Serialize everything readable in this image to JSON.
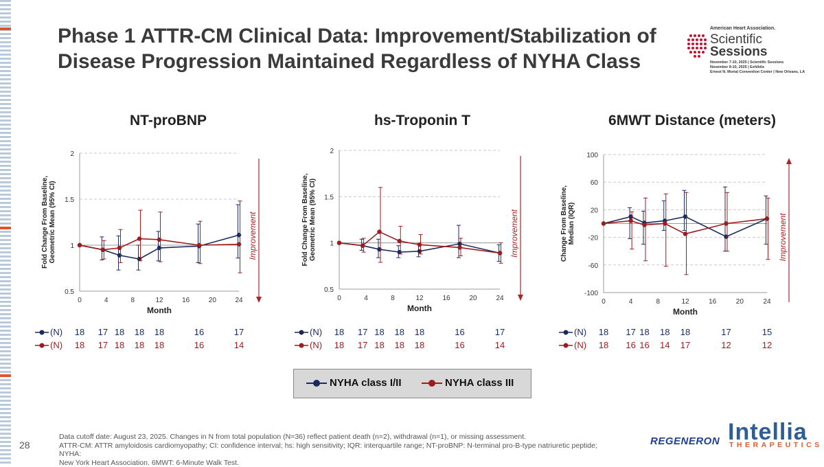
{
  "slide": {
    "title_line1": "Phase 1 ATTR-CM Clinical Data: Improvement/Stabilization of",
    "title_line2": "Disease Progression Maintained Regardless of NYHA Class",
    "page_number": "28",
    "footnote_line1": "Data cutoff date: August 23, 2025. Changes in N from total population (N=36) reflect patient death (n=2), withdrawal (n=1), or missing assessment.",
    "footnote_line2": "ATTR-CM: ATTR amyloidosis cardiomyopathy; CI: confidence interval; hs: high sensitivity; IQR: interquartile range; NT-proBNP: N-terminal pro-B-type natriuretic peptide; NYHA:",
    "footnote_line3": "New York Heart Association. 6MWT: 6-Minute Walk Test."
  },
  "logos": {
    "aha_org": "American Heart Association.",
    "aha_scientific": "Scientific",
    "aha_sessions": "Sessions",
    "aha_line1": "November 7-10, 2025 | Scientific Sessions",
    "aha_line2": "November 8-10, 2025 | Exhibits",
    "aha_line3": "Ernest N. Morial Convention Center | New Orleans, LA",
    "regeneron": "REGENERON",
    "intellia": "Intellia",
    "intellia_sub": "THERAPEUTICS"
  },
  "legend": {
    "class12": "NYHA class I/II",
    "class3": "NYHA class III"
  },
  "colors": {
    "class12": "#1b2a5c",
    "class3": "#9e1b1e",
    "improvement": "#a8272a",
    "grid": "#c8c8c8"
  },
  "chart_data": [
    {
      "type": "line",
      "title": "NT-proBNP",
      "xlabel": "Month",
      "ylabel_line1": "Fold Change From Baseline,",
      "ylabel_line2": "Geometric Mean (95% CI)",
      "improvement_label": "Improvement",
      "improvement_direction": "down",
      "x_ticks": [
        0,
        4,
        8,
        12,
        16,
        20,
        24
      ],
      "y_ticks": [
        0.5,
        1,
        1.5,
        2
      ],
      "y_tick_labels": [
        "0.5",
        "1",
        "1.5",
        "2"
      ],
      "ylim": [
        0.5,
        2
      ],
      "xlim": [
        0,
        24
      ],
      "n_label": "(N)",
      "series": [
        {
          "name": "NYHA class I/II",
          "x": [
            0,
            3.5,
            6,
            9,
            12,
            18,
            24
          ],
          "y": [
            1.0,
            0.95,
            0.89,
            0.85,
            0.97,
            0.99,
            1.11
          ],
          "ci_low": [
            1.0,
            0.84,
            0.73,
            0.73,
            0.83,
            0.81,
            0.86
          ],
          "ci_high": [
            1.0,
            1.09,
            1.1,
            1.0,
            1.15,
            1.23,
            1.44
          ],
          "n": [
            "18",
            "17",
            "18",
            "18",
            "18",
            "16",
            "17"
          ]
        },
        {
          "name": "NYHA class III",
          "x": [
            0,
            3.5,
            6,
            9,
            12,
            18,
            24
          ],
          "y": [
            1.0,
            0.95,
            0.97,
            1.07,
            1.06,
            1.0,
            1.01
          ],
          "ci_low": [
            1.0,
            0.85,
            0.81,
            0.83,
            0.82,
            0.8,
            0.7
          ],
          "ci_high": [
            1.0,
            1.05,
            1.17,
            1.38,
            1.36,
            1.26,
            1.48
          ],
          "n": [
            "18",
            "17",
            "18",
            "18",
            "18",
            "16",
            "14"
          ]
        }
      ]
    },
    {
      "type": "line",
      "title": "hs-Troponin T",
      "xlabel": "Month",
      "ylabel_line1": "Fold Change From Baseline,",
      "ylabel_line2": "Geometric Mean (95% CI)",
      "improvement_label": "Improvement",
      "improvement_direction": "down",
      "x_ticks": [
        0,
        4,
        8,
        12,
        16,
        20,
        24
      ],
      "y_ticks": [
        0.5,
        1,
        1.5,
        2
      ],
      "y_tick_labels": [
        "0.5",
        "1",
        "1.5",
        "2"
      ],
      "ylim": [
        0.5,
        2
      ],
      "xlim": [
        0,
        24
      ],
      "n_label": "(N)",
      "series": [
        {
          "name": "NYHA class I/II",
          "x": [
            0,
            3.5,
            6,
            9,
            12,
            18,
            24
          ],
          "y": [
            1.0,
            0.97,
            0.93,
            0.9,
            0.91,
            0.99,
            0.89
          ],
          "ci_low": [
            1.0,
            0.92,
            0.84,
            0.84,
            0.85,
            0.84,
            0.8
          ],
          "ci_high": [
            1.0,
            1.04,
            1.04,
            0.97,
            0.99,
            1.19,
            0.98
          ],
          "n": [
            "18",
            "17",
            "18",
            "18",
            "18",
            "16",
            "17"
          ]
        },
        {
          "name": "NYHA class III",
          "x": [
            0,
            3.5,
            6,
            9,
            12,
            18,
            24
          ],
          "y": [
            1.0,
            0.97,
            1.12,
            1.02,
            0.98,
            0.95,
            0.89
          ],
          "ci_low": [
            1.0,
            0.9,
            0.79,
            0.88,
            0.88,
            0.86,
            0.78
          ],
          "ci_high": [
            1.0,
            1.05,
            1.6,
            1.18,
            1.09,
            1.05,
            1.0
          ],
          "n": [
            "18",
            "17",
            "18",
            "18",
            "18",
            "16",
            "14"
          ]
        }
      ]
    },
    {
      "type": "line",
      "title": "6MWT Distance (meters)",
      "xlabel": "Month",
      "ylabel_line1": "Change From Baseline,",
      "ylabel_line2": "Median (IQR)",
      "improvement_label": "Improvement",
      "improvement_direction": "up",
      "x_ticks": [
        0,
        4,
        8,
        12,
        16,
        20,
        24
      ],
      "y_ticks": [
        -100,
        -60,
        -20,
        20,
        60,
        100
      ],
      "y_tick_labels": [
        "-100",
        "-60",
        "-20",
        "20",
        "60",
        "100"
      ],
      "ylim": [
        -100,
        100
      ],
      "xlim": [
        0,
        24
      ],
      "n_label": "(N)",
      "series": [
        {
          "name": "NYHA class I/II",
          "x": [
            0,
            4,
            6,
            9,
            12,
            18,
            24
          ],
          "y": [
            0,
            10,
            1,
            4,
            10,
            -19,
            7
          ],
          "ci_low": [
            0,
            -22,
            -30,
            -10,
            -10,
            -40,
            -30
          ],
          "ci_high": [
            0,
            23,
            18,
            33,
            48,
            53,
            40
          ],
          "n": [
            "18",
            "17",
            "18",
            "18",
            "18",
            "17",
            "15"
          ]
        },
        {
          "name": "NYHA class III",
          "x": [
            0,
            4,
            6,
            9,
            12,
            18,
            24
          ],
          "y": [
            0,
            4,
            -2,
            0,
            -15,
            0,
            7
          ],
          "ci_low": [
            0,
            -37,
            -54,
            -62,
            -74,
            -40,
            -52
          ],
          "ci_high": [
            0,
            17,
            37,
            43,
            45,
            45,
            37
          ],
          "n": [
            "18",
            "16",
            "16",
            "14",
            "17",
            "12",
            "12"
          ]
        }
      ]
    }
  ]
}
